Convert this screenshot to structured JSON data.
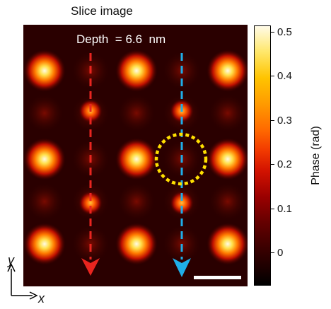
{
  "title": "Slice image",
  "depth_label": "Depth  = 6.6  nm",
  "colorbar": {
    "label": "Phase (rad)",
    "ticks": [
      "0.5",
      "0.4",
      "0.3",
      "0.2",
      "0.1",
      "0"
    ],
    "colormap": "hot"
  },
  "axes": {
    "x": "x",
    "y": "y"
  },
  "colors": {
    "arrow_left": "#e8251f",
    "arrow_right": "#1faee8",
    "circle": "#ffe000",
    "scale_bar": "#ffffff"
  }
}
